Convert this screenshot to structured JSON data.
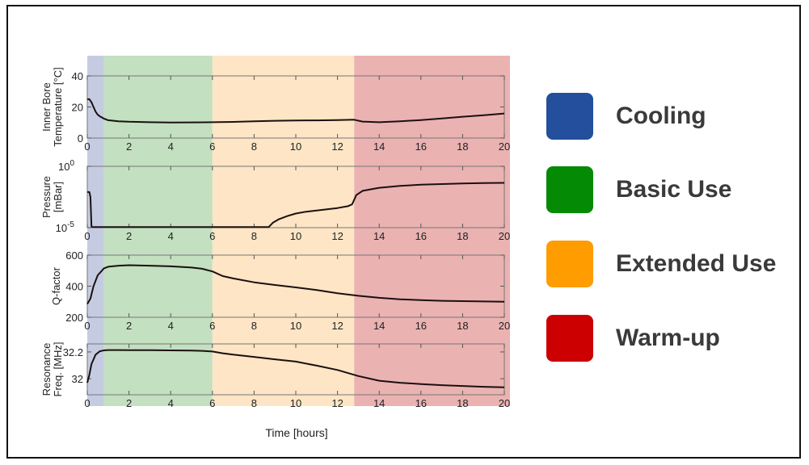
{
  "chart_data": {
    "type": "line",
    "x_label": "Time [hours]",
    "x_range": [
      0,
      20
    ],
    "x_ticks": [
      "0",
      "2",
      "4",
      "6",
      "8",
      "10",
      "12",
      "14",
      "16",
      "18",
      "20"
    ],
    "phases": [
      {
        "name": "Cooling",
        "start": 0,
        "end": 0.8,
        "color": "#234f9c",
        "bg": "#c5cce2"
      },
      {
        "name": "Basic Use",
        "start": 0.8,
        "end": 6.0,
        "color": "#058a05",
        "bg": "#c3e0c0"
      },
      {
        "name": "Extended Use",
        "start": 6.0,
        "end": 12.8,
        "color": "#ff9c00",
        "bg": "#fde5c5"
      },
      {
        "name": "Warm-up",
        "start": 12.8,
        "end": 20.3,
        "color": "#cc0000",
        "bg": "#ebb2b2"
      }
    ],
    "panels": [
      {
        "ylabel": [
          "Inner Bore",
          "Temperature [°C]"
        ],
        "scale": "linear",
        "ylim": [
          0,
          40
        ],
        "yticks": [
          {
            "value": 0,
            "label": "0"
          },
          {
            "value": 20,
            "label": "20"
          },
          {
            "value": 40,
            "label": "40"
          }
        ],
        "x": [
          0,
          0.1,
          0.2,
          0.3,
          0.4,
          0.5,
          0.6,
          0.8,
          1.0,
          1.5,
          2,
          3,
          4,
          5,
          6,
          7,
          8,
          9,
          10,
          11,
          12,
          12.8,
          13.2,
          14,
          15,
          16,
          17,
          18,
          19,
          20
        ],
        "y": [
          25,
          25,
          23,
          20,
          17,
          15,
          14,
          12.5,
          11.5,
          10.8,
          10.5,
          10.2,
          10,
          10.1,
          10.2,
          10.4,
          10.8,
          11.1,
          11.3,
          11.4,
          11.6,
          11.8,
          10.6,
          10.2,
          10.8,
          11.6,
          12.6,
          13.7,
          14.7,
          15.8
        ]
      },
      {
        "ylabel": [
          "Pressure",
          "[mBar]"
        ],
        "scale": "log",
        "ylim": [
          -5,
          0
        ],
        "yticks": [
          {
            "value": -5,
            "label": "10",
            "sup": "-5"
          },
          {
            "value": 0,
            "label": "10",
            "sup": "0"
          }
        ],
        "x": [
          0,
          0.1,
          0.15,
          0.2,
          0.25,
          1,
          2,
          3,
          4,
          5,
          6,
          7,
          8,
          8.7,
          8.9,
          9.2,
          9.6,
          10,
          10.5,
          11,
          11.5,
          12,
          12.5,
          12.7,
          12.9,
          13.2,
          14,
          15,
          16,
          17,
          18,
          19,
          20
        ],
        "y": [
          -2.1,
          -2.1,
          -2.5,
          -4.9,
          -4.95,
          -4.95,
          -4.95,
          -4.95,
          -4.95,
          -4.95,
          -4.95,
          -4.95,
          -4.95,
          -4.95,
          -4.6,
          -4.3,
          -4.05,
          -3.85,
          -3.7,
          -3.6,
          -3.5,
          -3.4,
          -3.25,
          -3.1,
          -2.35,
          -2.0,
          -1.75,
          -1.6,
          -1.5,
          -1.45,
          -1.4,
          -1.37,
          -1.35
        ]
      },
      {
        "ylabel": [
          "Q-factor"
        ],
        "scale": "linear",
        "ylim": [
          200,
          600
        ],
        "yticks": [
          {
            "value": 200,
            "label": "200"
          },
          {
            "value": 400,
            "label": "400"
          },
          {
            "value": 600,
            "label": "600"
          }
        ],
        "x": [
          0,
          0.15,
          0.3,
          0.5,
          0.8,
          1.0,
          1.5,
          2,
          3,
          4,
          5,
          5.5,
          6,
          6.5,
          7,
          8,
          9,
          10,
          11,
          12,
          13,
          14,
          15,
          16,
          17,
          18,
          19,
          20
        ],
        "y": [
          285,
          320,
          400,
          470,
          515,
          525,
          532,
          535,
          532,
          528,
          520,
          512,
          495,
          465,
          450,
          425,
          408,
          392,
          375,
          355,
          338,
          325,
          316,
          310,
          306,
          304,
          302,
          300
        ]
      },
      {
        "ylabel": [
          "Resonance",
          "Freq. [MHz]"
        ],
        "scale": "linear",
        "ylim": [
          31.88,
          32.26
        ],
        "yticks": [
          {
            "value": 32,
            "label": "32"
          },
          {
            "value": 32.2,
            "label": "32.2"
          }
        ],
        "x": [
          0,
          0.1,
          0.2,
          0.4,
          0.6,
          0.8,
          1.0,
          1.5,
          2,
          3,
          4,
          5,
          5.5,
          6,
          6.5,
          7,
          8,
          9,
          10,
          11,
          12,
          13,
          14,
          15,
          16,
          17,
          18,
          19,
          20
        ],
        "y": [
          31.97,
          32.03,
          32.11,
          32.18,
          32.205,
          32.212,
          32.214,
          32.214,
          32.213,
          32.213,
          32.212,
          32.21,
          32.208,
          32.203,
          32.19,
          32.18,
          32.163,
          32.145,
          32.128,
          32.098,
          32.065,
          32.02,
          31.985,
          31.97,
          31.96,
          31.952,
          31.946,
          31.94,
          31.936
        ]
      }
    ]
  },
  "legend": [
    {
      "label": "Cooling",
      "color": "#234f9c"
    },
    {
      "label": "Basic Use",
      "color": "#058a05"
    },
    {
      "label": "Extended Use",
      "color": "#ff9c00"
    },
    {
      "label": "Warm-up",
      "color": "#cc0000"
    }
  ]
}
